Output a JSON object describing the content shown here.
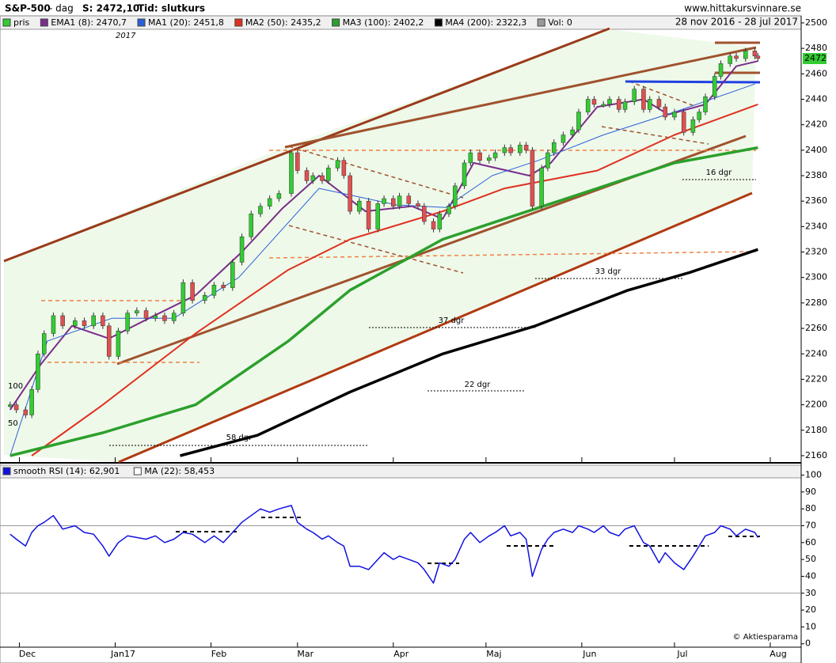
{
  "header": {
    "ticker": "S&P-500",
    "period": "-  dag",
    "s_label": "S: 2472,10",
    "tid_label": "Tid: slutkurs",
    "site": "www.hittakursvinnare.se"
  },
  "chart_data": [
    {
      "type": "candlestick",
      "date_range": "28 nov 2016 - 28 jul 2017",
      "year_label": "2017",
      "last_label": "2472",
      "vol_legend": "Vol: 0",
      "scale_labels": [
        "100",
        "50"
      ],
      "annotations": [
        "58 dgr",
        "37 dgr",
        "22 dgr",
        "33 dgr",
        "16 dgr"
      ],
      "xlim": [
        -2,
        256
      ],
      "xticks": [
        {
          "value": 3,
          "label": "Dec"
        },
        {
          "value": 34,
          "label": "Jan17"
        },
        {
          "value": 65,
          "label": "Feb"
        },
        {
          "value": 93,
          "label": "Mar"
        },
        {
          "value": 124,
          "label": "Apr"
        },
        {
          "value": 154,
          "label": "Maj"
        },
        {
          "value": 185,
          "label": "Jun"
        },
        {
          "value": 215,
          "label": "Jul"
        },
        {
          "value": 246,
          "label": "Aug"
        }
      ],
      "ylim": [
        2155,
        2495
      ],
      "yticks": [
        2160,
        2180,
        2200,
        2220,
        2240,
        2260,
        2280,
        2300,
        2320,
        2340,
        2360,
        2380,
        2400,
        2420,
        2440,
        2460,
        2480,
        2500
      ],
      "series": [
        {
          "name": "pris",
          "color": "#33cc33",
          "down_color": "#e05050",
          "x": [
            0,
            2,
            5,
            7,
            9,
            11,
            14,
            17,
            21,
            24,
            27,
            30,
            32,
            35,
            38,
            41,
            44,
            47,
            50,
            53,
            56,
            59,
            63,
            66,
            69,
            72,
            75,
            78,
            81,
            84,
            87,
            91,
            93,
            96,
            98,
            101,
            103,
            106,
            108,
            110,
            113,
            116,
            119,
            121,
            124,
            126,
            129,
            132,
            134,
            137,
            139,
            142,
            144,
            147,
            149,
            152,
            155,
            157,
            160,
            162,
            165,
            167,
            169,
            172,
            174,
            176,
            179,
            182,
            184,
            187,
            189,
            192,
            194,
            197,
            199,
            202,
            205,
            207,
            210,
            212,
            215,
            218,
            221,
            223,
            225,
            228,
            230,
            233,
            235,
            238,
            241,
            242
          ],
          "values": [
            2200,
            2196,
            2192,
            2212,
            2240,
            2256,
            2270,
            2262,
            2266,
            2262,
            2270,
            2262,
            2238,
            2258,
            2272,
            2274,
            2268,
            2270,
            2266,
            2272,
            2296,
            2282,
            2286,
            2294,
            2292,
            2312,
            2332,
            2350,
            2356,
            2362,
            2366,
            2398,
            2384,
            2376,
            2380,
            2376,
            2386,
            2392,
            2380,
            2352,
            2360,
            2338,
            2358,
            2362,
            2356,
            2364,
            2358,
            2356,
            2344,
            2338,
            2350,
            2356,
            2372,
            2390,
            2398,
            2392,
            2394,
            2398,
            2402,
            2398,
            2404,
            2400,
            2356,
            2386,
            2398,
            2406,
            2412,
            2416,
            2430,
            2440,
            2436,
            2436,
            2440,
            2432,
            2438,
            2448,
            2432,
            2440,
            2434,
            2426,
            2430,
            2414,
            2424,
            2430,
            2442,
            2458,
            2468,
            2474,
            2472,
            2478,
            2474,
            2472
          ]
        },
        {
          "name": "EMA1 (8): 2470,7",
          "color": "#7b2d8b",
          "width": 2,
          "x": [
            0,
            10,
            20,
            32,
            45,
            60,
            75,
            88,
            100,
            115,
            130,
            140,
            150,
            168,
            175,
            190,
            205,
            213,
            225,
            235,
            242
          ],
          "values": [
            2196,
            2232,
            2262,
            2252,
            2268,
            2286,
            2320,
            2354,
            2380,
            2352,
            2356,
            2346,
            2390,
            2380,
            2390,
            2434,
            2440,
            2428,
            2436,
            2466,
            2470
          ]
        },
        {
          "name": "MA1 (20): 2451,8",
          "color": "#2b5fd9",
          "width": 1,
          "x": [
            0,
            12,
            33,
            53,
            74,
            100,
            125,
            141,
            156,
            171,
            192,
            215,
            241
          ],
          "values": [
            2160,
            2250,
            2268,
            2268,
            2300,
            2370,
            2357,
            2355,
            2380,
            2392,
            2412,
            2430,
            2452
          ]
        },
        {
          "name": "MA2 (50): 2435,2",
          "color": "#e03020",
          "width": 2,
          "x": [
            7,
            30,
            60,
            90,
            110,
            140,
            160,
            190,
            215,
            242
          ],
          "values": [
            2160,
            2200,
            2256,
            2306,
            2330,
            2352,
            2370,
            2384,
            2412,
            2436
          ]
        },
        {
          "name": "MA3 (100): 2402,2",
          "color": "#2ca02c",
          "width": 3.5,
          "x": [
            0,
            30,
            60,
            90,
            110,
            140,
            160,
            190,
            215,
            242
          ],
          "values": [
            2160,
            2178,
            2200,
            2250,
            2290,
            2330,
            2346,
            2370,
            2390,
            2402
          ]
        },
        {
          "name": "MA4 (200): 2322,3",
          "color": "#000000",
          "width": 3.5,
          "x": [
            55,
            80,
            110,
            140,
            170,
            200,
            220,
            242
          ],
          "values": [
            2160,
            2176,
            2210,
            2240,
            2262,
            2290,
            2304,
            2322
          ]
        }
      ]
    },
    {
      "type": "line",
      "ma_legend": "MA (22): 58,453",
      "copyright": "© Aktiesparama",
      "xlim": [
        -2,
        256
      ],
      "ylim": [
        -2,
        104
      ],
      "yticks": [
        0,
        10,
        20,
        30,
        40,
        50,
        60,
        70,
        80,
        90,
        100
      ],
      "levels": [
        30,
        70
      ],
      "series": [
        {
          "name": "smooth RSI (14): 62,901",
          "color": "#1010e0",
          "x": [
            0,
            2,
            5,
            7,
            9,
            11,
            14,
            17,
            21,
            24,
            27,
            30,
            32,
            35,
            38,
            41,
            44,
            47,
            50,
            53,
            56,
            59,
            63,
            66,
            69,
            72,
            75,
            78,
            81,
            84,
            87,
            91,
            93,
            96,
            98,
            101,
            103,
            106,
            108,
            110,
            113,
            116,
            119,
            121,
            124,
            126,
            129,
            132,
            134,
            137,
            139,
            142,
            144,
            147,
            149,
            152,
            155,
            157,
            160,
            162,
            165,
            167,
            169,
            172,
            174,
            176,
            179,
            182,
            184,
            187,
            189,
            192,
            194,
            197,
            199,
            202,
            205,
            207,
            210,
            212,
            215,
            218,
            221,
            223,
            225,
            228,
            230,
            233,
            235,
            238,
            241,
            242
          ],
          "values": [
            65,
            62,
            58,
            66,
            70,
            72,
            76,
            68,
            70,
            66,
            65,
            58,
            52,
            60,
            64,
            63,
            62,
            64,
            60,
            62,
            66,
            65,
            60,
            64,
            60,
            66,
            72,
            76,
            80,
            78,
            80,
            82,
            72,
            68,
            66,
            62,
            64,
            60,
            58,
            46,
            46,
            44,
            50,
            54,
            50,
            52,
            50,
            48,
            44,
            36,
            48,
            46,
            50,
            62,
            66,
            60,
            64,
            66,
            70,
            64,
            66,
            62,
            40,
            56,
            62,
            66,
            68,
            66,
            70,
            68,
            66,
            70,
            66,
            64,
            68,
            70,
            60,
            58,
            48,
            54,
            48,
            44,
            52,
            58,
            64,
            66,
            70,
            68,
            64,
            68,
            66,
            63
          ]
        }
      ]
    }
  ]
}
